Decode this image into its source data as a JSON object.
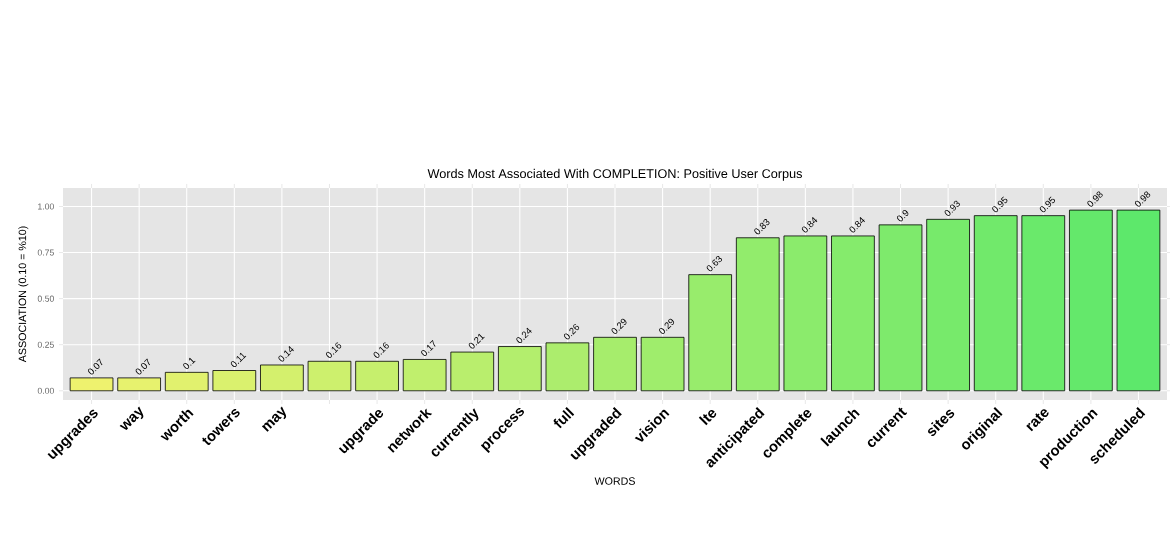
{
  "chart_data": {
    "type": "bar",
    "title": "Words Most Associated With COMPLETION: Positive User Corpus",
    "xlabel": "WORDS",
    "ylabel": "ASSOCIATION (0.10 = %10)",
    "categories": [
      "upgrades",
      "way",
      "worth",
      "towers",
      "may",
      null,
      "upgrade",
      "network",
      "currently",
      "process",
      "full",
      "upgraded",
      "vision",
      "lte",
      "anticipated",
      "complete",
      "launch",
      "current",
      "sites",
      "original",
      "rate",
      "production",
      "scheduled"
    ],
    "values": [
      0.07,
      0.07,
      0.1,
      0.11,
      0.14,
      0.16,
      0.16,
      0.17,
      0.21,
      0.24,
      0.26,
      0.29,
      0.29,
      0.63,
      0.83,
      0.84,
      0.84,
      0.9,
      0.93,
      0.95,
      0.95,
      0.98,
      0.98
    ],
    "colors": [
      "#eef26e",
      "#e7f26e",
      "#e1f16e",
      "#daf16e",
      "#d4f06d",
      "#cdf06d",
      "#c6ef6d",
      "#c0ef6d",
      "#b9ee6d",
      "#b3ee6d",
      "#aced6d",
      "#a6ed6c",
      "#9fed6c",
      "#98ec6c",
      "#92ec6c",
      "#8beb6c",
      "#85eb6c",
      "#7eea6c",
      "#77ea6b",
      "#71e96b",
      "#6ae96b",
      "#64e86b",
      "#5de86b"
    ],
    "ylim": [
      -0.05,
      1.1
    ],
    "yticks": [
      {
        "value": 0,
        "label": "0.00"
      },
      {
        "value": 0.25,
        "label": "0.25"
      },
      {
        "value": 0.5,
        "label": "0.50"
      },
      {
        "value": 0.75,
        "label": "0.75"
      },
      {
        "value": 1,
        "label": "1.00"
      }
    ],
    "grid": true,
    "data_labels": true
  }
}
